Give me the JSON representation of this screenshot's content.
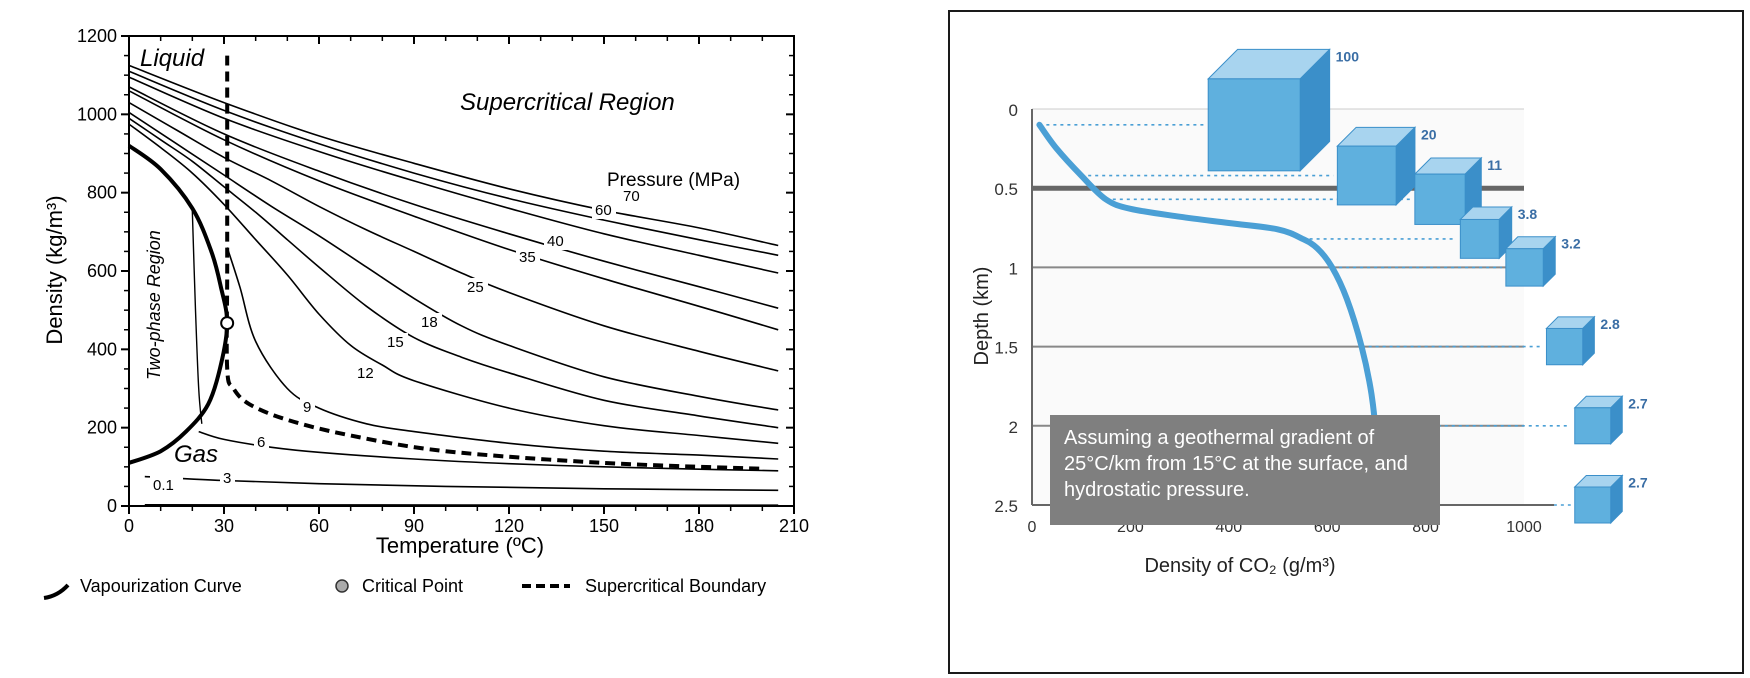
{
  "chart_data": [
    {
      "type": "line",
      "title": "",
      "xlabel": "Temperature (ºC)",
      "ylabel": "Density (kg/m³)",
      "xlim": [
        0,
        210
      ],
      "ylim": [
        0,
        1200
      ],
      "xticks": [
        "0",
        "30",
        "60",
        "90",
        "120",
        "150",
        "180",
        "210"
      ],
      "yticks": [
        "0",
        "200",
        "400",
        "600",
        "800",
        "1000",
        "1200"
      ],
      "region_labels": {
        "liquid": "Liquid",
        "gas": "Gas",
        "supercritical": "Supercritical Region",
        "two_phase": "Two-phase Region",
        "pressure_header": "Pressure (MPa)"
      },
      "critical_point": {
        "x": 31,
        "y": 467
      },
      "series": [
        {
          "name": "0.1",
          "x": [
            5,
            205
          ],
          "y": [
            3,
            2
          ]
        },
        {
          "name": "3",
          "x": [
            5,
            30,
            60,
            100,
            150,
            205
          ],
          "y": [
            75,
            65,
            57,
            50,
            44,
            40
          ]
        },
        {
          "name": "6",
          "x": [
            22,
            30,
            45,
            60,
            90,
            120,
            150,
            180,
            205
          ],
          "y": [
            190,
            170,
            150,
            137,
            120,
            108,
            100,
            94,
            90
          ]
        },
        {
          "name": "9",
          "x": [
            31,
            35,
            40,
            50,
            60,
            75,
            90,
            120,
            150,
            180,
            205
          ],
          "y": [
            660,
            560,
            420,
            300,
            250,
            210,
            190,
            160,
            140,
            130,
            120
          ]
        },
        {
          "name": "12",
          "x": [
            0,
            10,
            20,
            30,
            40,
            50,
            60,
            70,
            80,
            90,
            120,
            150,
            180,
            205
          ],
          "y": [
            975,
            915,
            850,
            770,
            680,
            590,
            490,
            410,
            360,
            320,
            250,
            205,
            180,
            160
          ]
        },
        {
          "name": "15",
          "x": [
            0,
            10,
            20,
            30,
            40,
            50,
            60,
            75,
            90,
            105,
            120,
            150,
            180,
            205
          ],
          "y": [
            990,
            935,
            880,
            815,
            750,
            680,
            610,
            510,
            430,
            380,
            340,
            270,
            230,
            200
          ]
        },
        {
          "name": "18",
          "x": [
            0,
            15,
            30,
            45,
            60,
            75,
            90,
            105,
            120,
            150,
            180,
            205
          ],
          "y": [
            1005,
            925,
            845,
            765,
            690,
            610,
            530,
            460,
            410,
            330,
            280,
            245
          ]
        },
        {
          "name": "25",
          "x": [
            0,
            15,
            30,
            45,
            60,
            75,
            90,
            105,
            120,
            150,
            180,
            205
          ],
          "y": [
            1030,
            960,
            890,
            830,
            765,
            705,
            650,
            595,
            545,
            460,
            395,
            345
          ]
        },
        {
          "name": "35",
          "x": [
            0,
            30,
            60,
            90,
            120,
            150,
            180,
            205
          ],
          "y": [
            1060,
            935,
            830,
            740,
            655,
            580,
            510,
            450
          ]
        },
        {
          "name": "40",
          "x": [
            0,
            30,
            60,
            90,
            120,
            150,
            180,
            205
          ],
          "y": [
            1070,
            950,
            855,
            770,
            695,
            625,
            560,
            505
          ]
        },
        {
          "name": "60",
          "x": [
            0,
            30,
            60,
            90,
            120,
            150,
            180,
            205
          ],
          "y": [
            1095,
            990,
            905,
            830,
            760,
            695,
            640,
            595
          ]
        },
        {
          "name": "70",
          "x": [
            0,
            30,
            60,
            90,
            120,
            150,
            180,
            205
          ],
          "y": [
            1110,
            1010,
            925,
            850,
            785,
            730,
            680,
            640
          ]
        },
        {
          "name": "",
          "x": [
            0,
            30,
            60,
            90,
            120,
            150,
            180,
            205
          ],
          "y": [
            1125,
            1030,
            945,
            875,
            810,
            755,
            710,
            665
          ]
        }
      ],
      "vaporization_curve": {
        "x": [
          0,
          10,
          20,
          26,
          29,
          31,
          29,
          25,
          18,
          10,
          0
        ],
        "y": [
          920,
          860,
          760,
          650,
          560,
          467,
          360,
          260,
          190,
          140,
          110
        ]
      },
      "two_phase_thin_line": {
        "x": [
          20,
          21,
          22,
          23
        ],
        "y": [
          755,
          500,
          300,
          210
        ]
      },
      "supercritical_boundary": {
        "x": [
          31,
          31,
          31,
          31,
          33,
          38,
          50,
          70,
          100,
          150,
          200
        ],
        "y": [
          1150,
          900,
          600,
          350,
          300,
          260,
          220,
          180,
          140,
          110,
          95
        ]
      },
      "legend": [
        {
          "type": "curve",
          "label": "Vapourization Curve"
        },
        {
          "type": "point",
          "label": "Critical Point"
        },
        {
          "type": "dashed",
          "label": "Supercritical Boundary"
        }
      ],
      "colors": {
        "lines": "#000000",
        "critical_point_fill": "#ffffff",
        "legend_point_fill": "#aaaaaa"
      }
    },
    {
      "type": "line",
      "title": "",
      "xlabel": "Density of CO₂ (g/m³)",
      "ylabel": "Depth (km)",
      "xlim": [
        0,
        1000
      ],
      "ylim": [
        2.5,
        0
      ],
      "xticks": [
        "0",
        "200",
        "400",
        "600",
        "800",
        "1000"
      ],
      "yticks": [
        "0",
        "0.5",
        "1",
        "1.5",
        "2",
        "2.5"
      ],
      "series": [
        {
          "name": "",
          "x": [
            15,
            50,
            100,
            150,
            200,
            300,
            400,
            500,
            550,
            580,
            610,
            640,
            670,
            690,
            700,
            705
          ],
          "y": [
            0.1,
            0.25,
            0.42,
            0.57,
            0.63,
            0.68,
            0.72,
            0.76,
            0.82,
            0.88,
            1.0,
            1.2,
            1.5,
            1.8,
            2.1,
            2.5
          ]
        }
      ],
      "cubes": [
        {
          "label": "100",
          "depth": 0.1,
          "size": 100
        },
        {
          "label": "20",
          "depth": 0.42,
          "size": 20
        },
        {
          "label": "11",
          "depth": 0.57,
          "size": 11
        },
        {
          "label": "3.8",
          "depth": 0.82,
          "size": 3.8
        },
        {
          "label": "3.2",
          "depth": 1.0,
          "size": 3.2
        },
        {
          "label": "2.8",
          "depth": 1.5,
          "size": 2.8
        },
        {
          "label": "2.7",
          "depth": 2.0,
          "size": 2.7
        },
        {
          "label": "2.7",
          "depth": 2.5,
          "size": 2.7
        }
      ],
      "note": "Assuming a geothermal gradient of 25°C/km from 15°C at the surface, and hydrostatic pressure.",
      "colors": {
        "curve": "#4a9fd5",
        "cube_front": "#5fb0de",
        "cube_top": "#a8d4ef",
        "cube_side": "#3b8fc9",
        "grid": "#555555",
        "dotted": "#4a9fd5",
        "note_bg": "#7f7f7f"
      }
    }
  ]
}
